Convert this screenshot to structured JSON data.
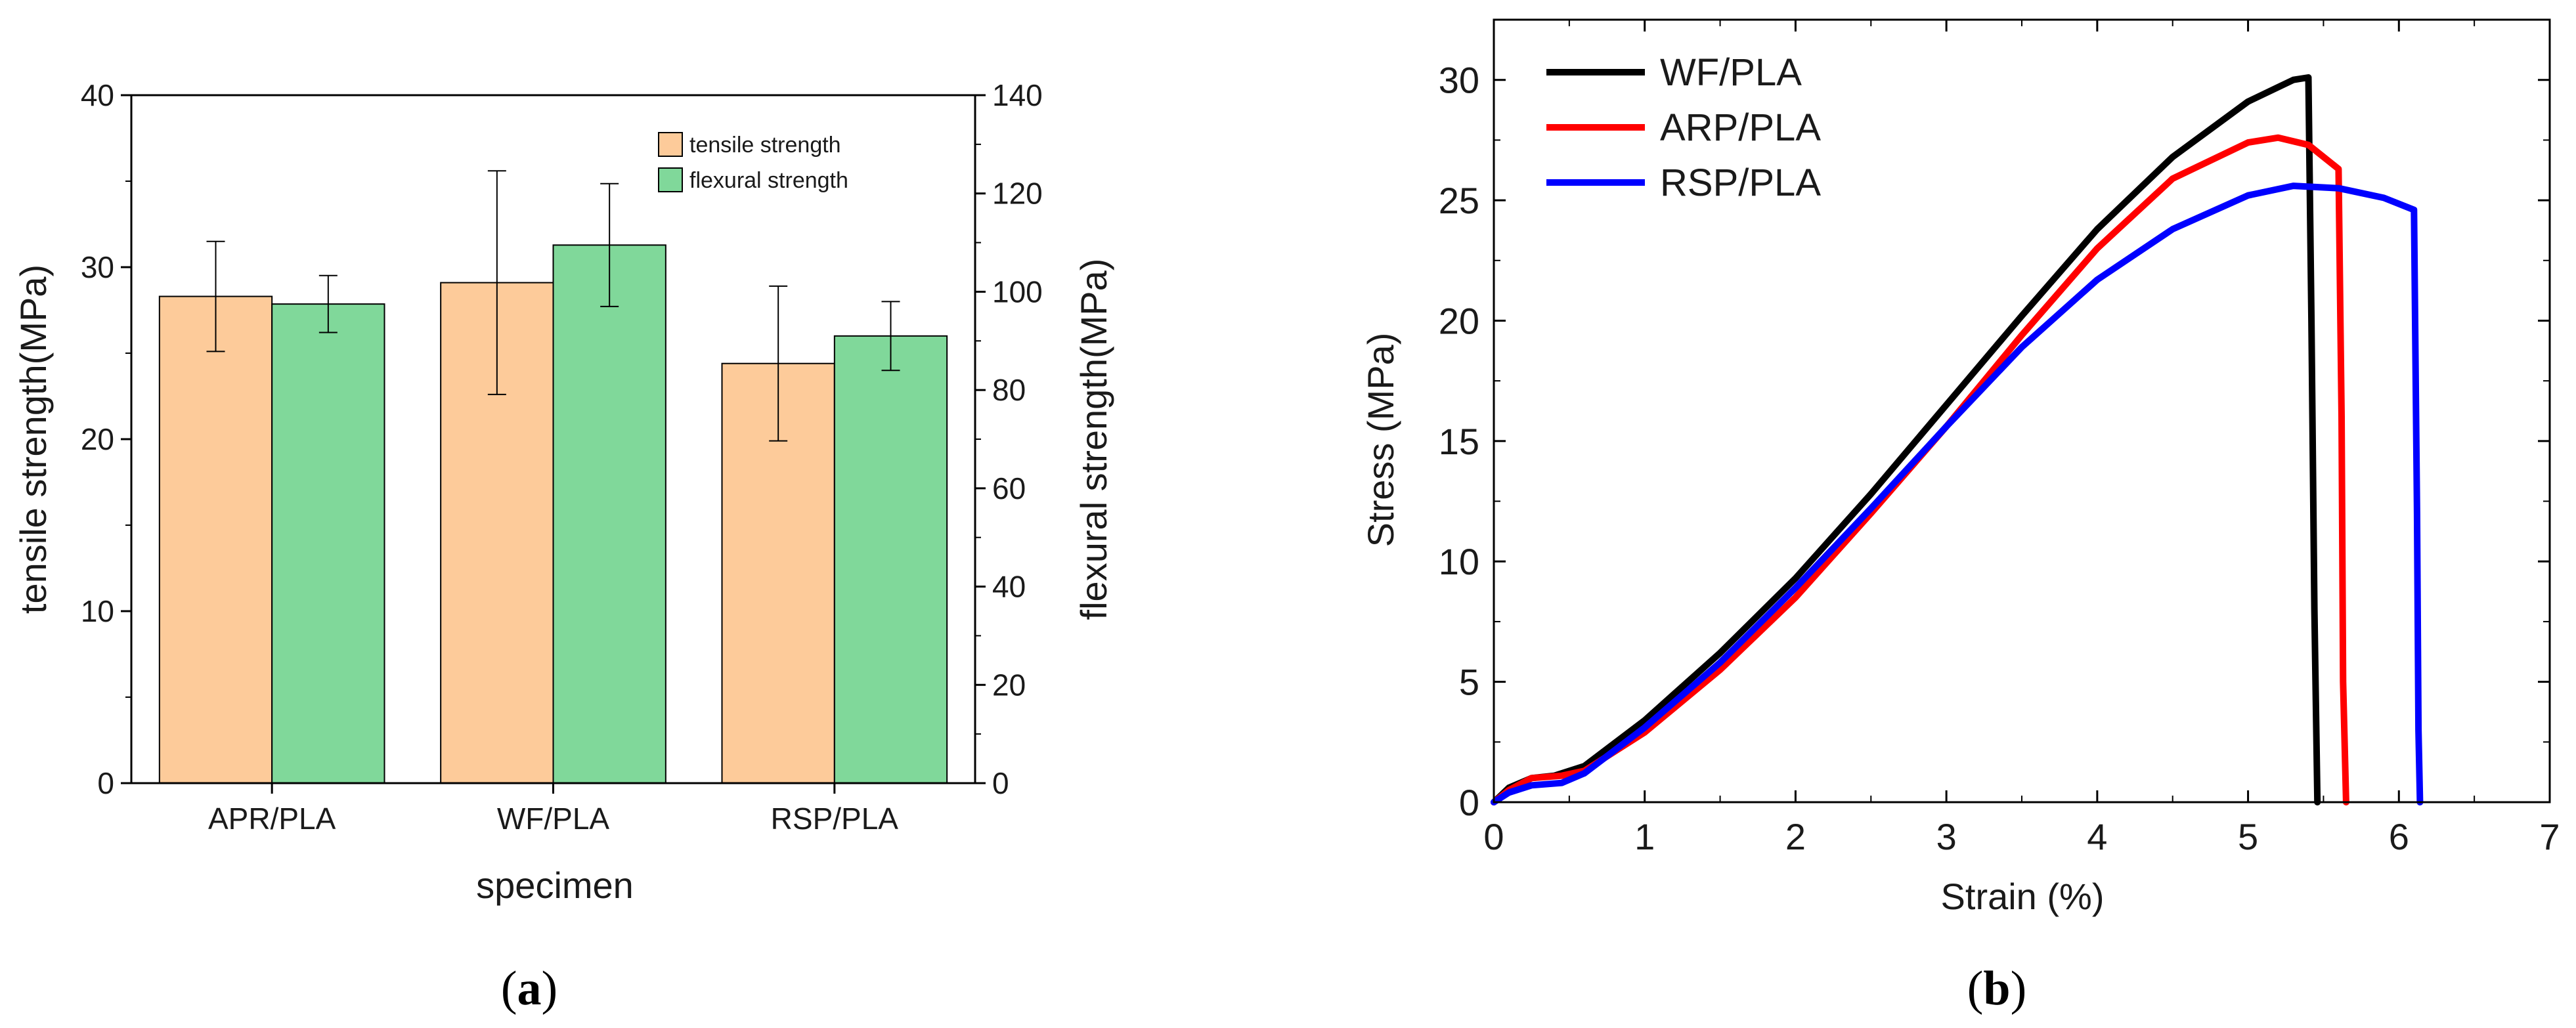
{
  "chart_data": [
    {
      "type": "bar",
      "panel_caption": "a",
      "categories": [
        "APR/PLA",
        "WF/PLA",
        "RSP/PLA"
      ],
      "xlabel": "specimen",
      "ylabel": "tensile strength(MPa)",
      "ylabel_right": "flexural strength(MPa)",
      "ylim": [
        0,
        40
      ],
      "yticks": [
        0,
        10,
        20,
        30,
        40
      ],
      "ylim_right": [
        0,
        140
      ],
      "yticks_right": [
        0,
        20,
        40,
        60,
        80,
        100,
        120,
        140
      ],
      "series": [
        {
          "name": "tensile strength",
          "axis": "left",
          "color": "#FDCB9A",
          "values": [
            28.3,
            29.1,
            24.4
          ],
          "errors": [
            3.2,
            6.5,
            4.5
          ]
        },
        {
          "name": "flexural strength",
          "axis": "right",
          "color": "#80D89A",
          "values": [
            97.5,
            109.5,
            91.0
          ],
          "errors": [
            5.8,
            12.5,
            7.0
          ]
        }
      ],
      "legend_position": "top-right"
    },
    {
      "type": "line",
      "panel_caption": "b",
      "xlabel": "Strain (%)",
      "ylabel": "Stress (MPa)",
      "xlim": [
        0,
        7
      ],
      "ylim": [
        0,
        32.5
      ],
      "xticks": [
        0,
        1,
        2,
        3,
        4,
        5,
        6,
        7
      ],
      "yticks": [
        0,
        5,
        10,
        15,
        20,
        25,
        30
      ],
      "legend_position": "top-left",
      "series": [
        {
          "name": "WF/PLA",
          "color": "#000000",
          "x": [
            0,
            0.1,
            0.25,
            0.4,
            0.6,
            1.0,
            1.5,
            2.0,
            2.5,
            3.0,
            3.5,
            4.0,
            4.5,
            5.0,
            5.3,
            5.4,
            5.42,
            5.44,
            5.46
          ],
          "y": [
            0,
            0.6,
            1.0,
            1.1,
            1.5,
            3.4,
            6.2,
            9.3,
            12.8,
            16.5,
            20.2,
            23.8,
            26.8,
            29.1,
            30.0,
            30.1,
            20.0,
            8.0,
            0
          ]
        },
        {
          "name": "ARP/PLA",
          "color": "#FF0000",
          "x": [
            0,
            0.1,
            0.25,
            0.45,
            0.6,
            1.0,
            1.5,
            2.0,
            2.5,
            3.0,
            3.5,
            4.0,
            4.5,
            5.0,
            5.2,
            5.4,
            5.6,
            5.62,
            5.63,
            5.65
          ],
          "y": [
            0,
            0.5,
            1.0,
            1.1,
            1.3,
            2.9,
            5.5,
            8.5,
            12.0,
            15.6,
            19.4,
            23.0,
            25.9,
            27.4,
            27.6,
            27.3,
            26.3,
            16.0,
            5.0,
            0
          ]
        },
        {
          "name": "RSP/PLA",
          "color": "#0000FF",
          "x": [
            0,
            0.1,
            0.25,
            0.45,
            0.6,
            1.0,
            1.5,
            2.0,
            2.5,
            3.0,
            3.5,
            4.0,
            4.5,
            5.0,
            5.3,
            5.6,
            5.9,
            6.1,
            6.12,
            6.13,
            6.14
          ],
          "y": [
            0,
            0.4,
            0.7,
            0.8,
            1.2,
            3.1,
            5.8,
            8.9,
            12.2,
            15.6,
            18.9,
            21.7,
            23.8,
            25.2,
            25.6,
            25.5,
            25.1,
            24.6,
            12.0,
            3.0,
            0
          ]
        }
      ]
    }
  ]
}
